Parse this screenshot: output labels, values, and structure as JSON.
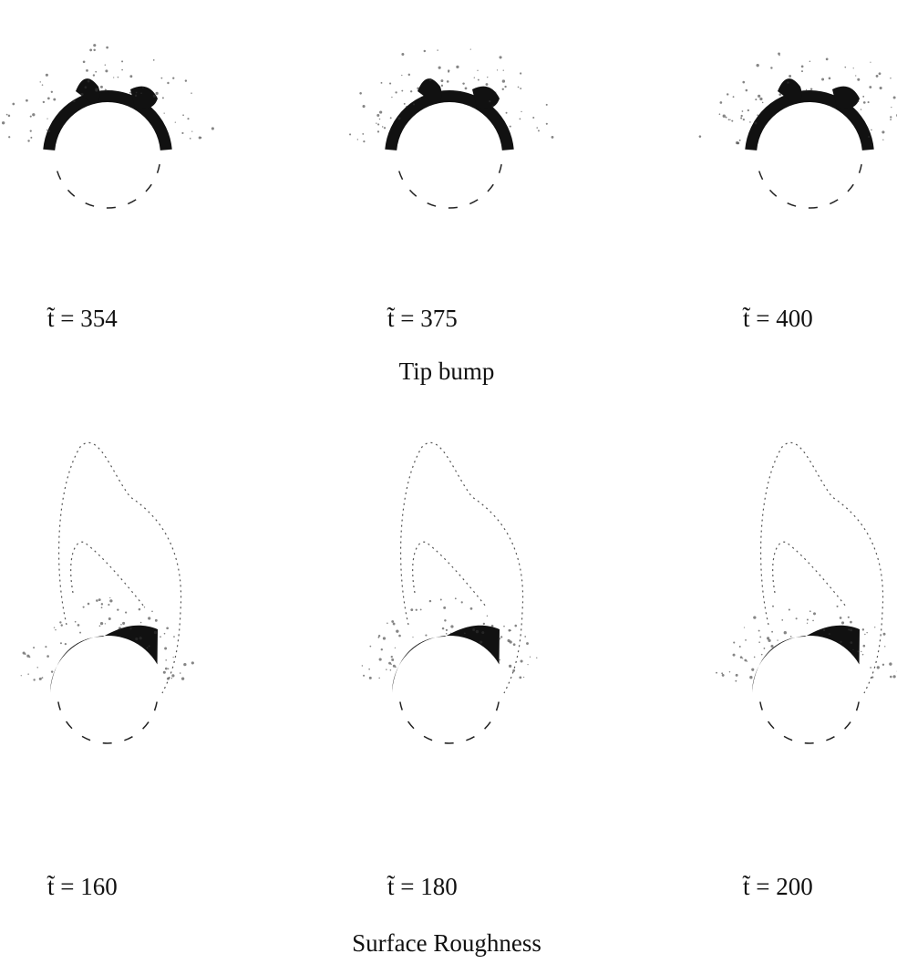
{
  "figures": [
    {
      "caption": "Tip bump",
      "panels": [
        {
          "label": "t̃ = 354"
        },
        {
          "label": "t̃ = 375"
        },
        {
          "label": "t̃ = 400"
        }
      ]
    },
    {
      "caption": "Surface Roughness",
      "panels": [
        {
          "label": "t̃ = 160"
        },
        {
          "label": "t̃ = 180"
        },
        {
          "label": "t̃ = 200"
        }
      ]
    }
  ]
}
